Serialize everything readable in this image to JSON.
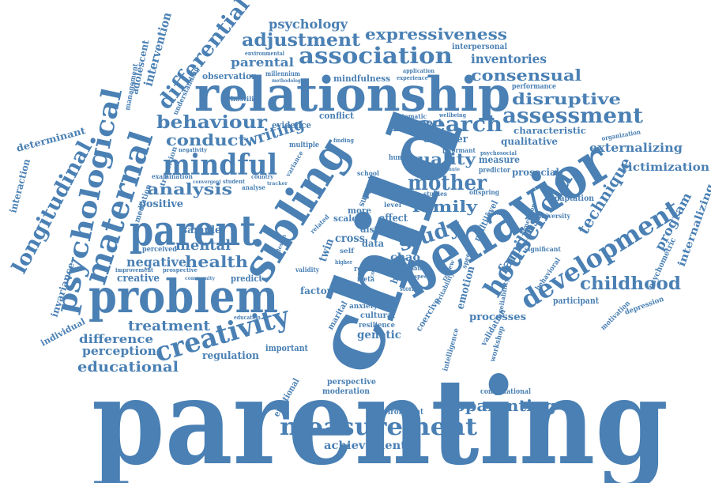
{
  "colors": {
    "ink": "#4a80b4",
    "background": "#ffffff"
  },
  "words": {
    "parenting": "parenting",
    "child": "child",
    "behavior": "behavior",
    "problem": "problem",
    "relationship": "relationship",
    "sibling": "sibling",
    "parent": "parent",
    "development": "development",
    "household": "household",
    "maternal": "maternal",
    "psychological": "psychological",
    "measurement": "measurement",
    "creativity": "creativity",
    "mindful": "mindful",
    "association": "association",
    "assessment": "assessment",
    "research": "research",
    "differential": "differential",
    "adjustment": "adjustment",
    "expressiveness": "expressiveness",
    "consensual": "consensual",
    "disruptive": "disruptive",
    "behaviour": "behaviour",
    "longitudinal": "longitudinal",
    "study": "study",
    "mother": "mother",
    "family": "family",
    "analysis": "analysis",
    "conduct": "conduct",
    "writing": "writing",
    "quality": "quality",
    "technique": "technique",
    "families": "families",
    "childhood": "childhood",
    "coparenting": "coparenting",
    "educational": "educational",
    "treatment": "treatment",
    "difference": "difference",
    "perception": "perception",
    "health": "health",
    "negative": "negative",
    "mental": "mental",
    "sample": "sample",
    "program": "program",
    "externalizing": "externalizing",
    "victimization": "victimization",
    "internalizing": "internalizing",
    "intervention": "intervention",
    "adolescent": "adolescent",
    "psychology": "psychology",
    "parental": "parental",
    "inventories": "inventories",
    "achievement": "achievement",
    "regulation": "regulation",
    "genetic": "genetic",
    "emotion": "emotion",
    "processes": "processes",
    "creative": "creative",
    "positive": "positive",
    "interaction": "interaction",
    "determinant": "determinant",
    "invariance": "invariance",
    "individual": "individual",
    "chao": "chao",
    "cross": "cross",
    "data": "data",
    "effect": "effect",
    "twin": "twin",
    "harsh": "harsh",
    "factor": "factor",
    "disorder": "disorder",
    "report": "report",
    "measure": "measure",
    "qualitative": "qualitative",
    "prosocial": "prosocial",
    "characteristic": "characteristic",
    "observation": "observation",
    "mindfulness": "mindfulness",
    "management": "management",
    "interpersonal": "interpersonal",
    "performance": "performance",
    "multilevel": "multilevel",
    "adaptation": "adaptation",
    "participant": "participant",
    "perspective": "perspective",
    "moderation": "moderation",
    "environment": "environment",
    "computational": "computational",
    "emotional": "emotional",
    "important": "important",
    "predict": "predict",
    "evidence": "evidence",
    "conflict": "conflict",
    "support": "support",
    "coercive": "coercive",
    "cultural": "cultural",
    "marital": "marital",
    "resilience": "resilience",
    "anxiety": "anxiety",
    "validation": "validation",
    "workshop": "workshop",
    "psychometric": "psychometric",
    "depression": "depression",
    "motivation": "motivation",
    "understanding": "understanding",
    "examination": "examination",
    "mediation": "mediation",
    "transition": "transition",
    "perceived": "perceived",
    "hostility": "hostility",
    "improvement": "improvement",
    "prospective": "prospective",
    "systematic": "systematic",
    "organization": "organization",
    "university": "university",
    "dimension": "dimension",
    "significant": "significant",
    "predictor": "predictor",
    "informant": "informant",
    "intelligence": "intelligence",
    "reliability": "reliability",
    "behavioral": "behavioral",
    "scale": "scale",
    "distr": "distr",
    "more": "more",
    "level": "level",
    "social": "social",
    "school": "school",
    "human": "human",
    "digital": "digital",
    "result": "result",
    "meta": "meta",
    "offspring": "offspring",
    "studies": "studies",
    "speech": "speech",
    "irritability": "irritability",
    "review": "review",
    "application": "application",
    "experience": "experience",
    "millennium": "millennium",
    "methodology": "methodology",
    "environmental": "environmental",
    "self": "self",
    "stories": "stories",
    "validity": "validity",
    "multiple": "multiple",
    "variance": "variance",
    "finding": "finding",
    "wellbeing": "wellbeing",
    "psychosocial": "psychosocial",
    "negativity": "negativity",
    "student": "student",
    "analyse": "analyse",
    "convergent": "convergent",
    "country": "country",
    "tracker": "tracker",
    "community": "community",
    "education": "education",
    "cohort": "cohort",
    "higher": "higher",
    "design": "design",
    "ability": "ability",
    "aspect": "aspect",
    "minute": "minute",
    "construct": "construct",
    "related": "related"
  }
}
